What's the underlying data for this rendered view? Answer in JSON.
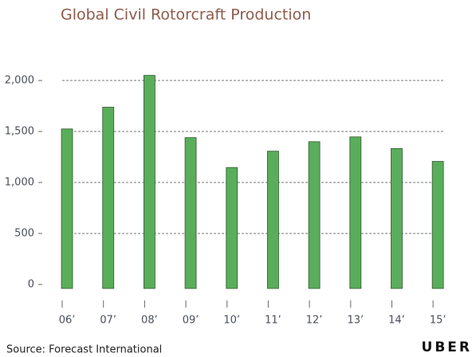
{
  "chart_data": {
    "type": "bar",
    "title": "Global Civil Rotorcraft Production",
    "categories": [
      "06’",
      "07’",
      "08’",
      "09’",
      "10’",
      "11’",
      "12’",
      "13’",
      "14’",
      "15’"
    ],
    "values": [
      1525,
      1738,
      2050,
      1440,
      1147,
      1307,
      1400,
      1447,
      1333,
      1207
    ],
    "color": "#5aad5a",
    "ylim": [
      0,
      2100
    ],
    "yticks": [
      0,
      500,
      {
        "value": 1000,
        "label": "1,000"
      },
      {
        "value": 1500,
        "label": "1,500"
      },
      {
        "value": 2000,
        "label": "2,000"
      }
    ],
    "grid": true,
    "source": "Source: Forecast International",
    "brand": "UBER"
  }
}
